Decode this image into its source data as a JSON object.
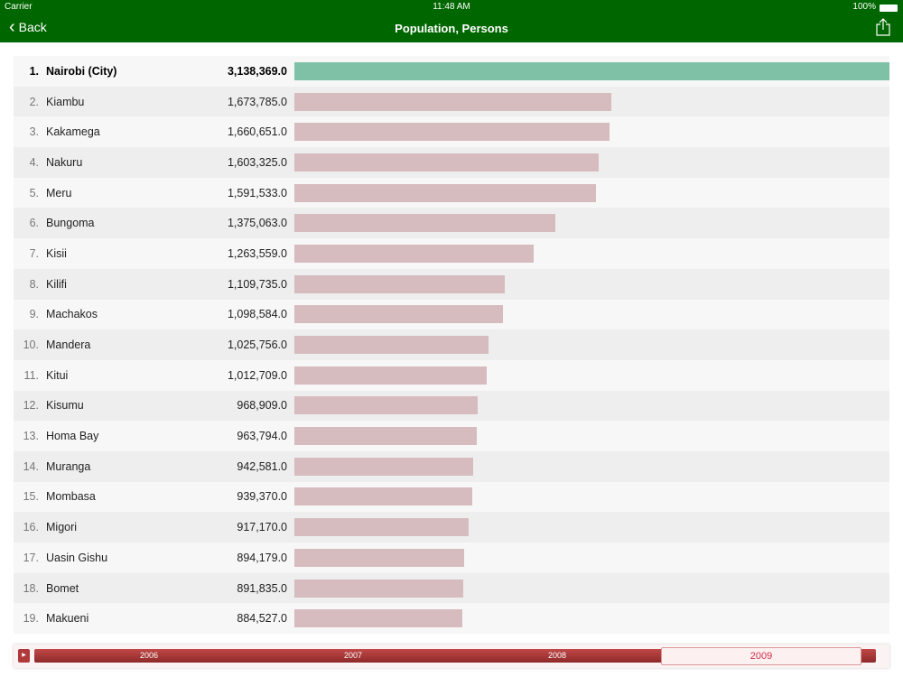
{
  "status": {
    "carrier": "Carrier",
    "time": "11:48 AM",
    "battery": "100%"
  },
  "nav": {
    "back": "Back",
    "title": "Population, Persons"
  },
  "chart_data": {
    "type": "bar",
    "title": "Population, Persons",
    "year": "2009",
    "items": [
      {
        "rank": "1.",
        "name": "Nairobi (City)",
        "value": 3138369,
        "label": "3,138,369.0"
      },
      {
        "rank": "2.",
        "name": "Kiambu",
        "value": 1673785,
        "label": "1,673,785.0"
      },
      {
        "rank": "3.",
        "name": "Kakamega",
        "value": 1660651,
        "label": "1,660,651.0"
      },
      {
        "rank": "4.",
        "name": "Nakuru",
        "value": 1603325,
        "label": "1,603,325.0"
      },
      {
        "rank": "5.",
        "name": "Meru",
        "value": 1591533,
        "label": "1,591,533.0"
      },
      {
        "rank": "6.",
        "name": "Bungoma",
        "value": 1375063,
        "label": "1,375,063.0"
      },
      {
        "rank": "7.",
        "name": "Kisii",
        "value": 1263559,
        "label": "1,263,559.0"
      },
      {
        "rank": "8.",
        "name": "Kilifi",
        "value": 1109735,
        "label": "1,109,735.0"
      },
      {
        "rank": "9.",
        "name": "Machakos",
        "value": 1098584,
        "label": "1,098,584.0"
      },
      {
        "rank": "10.",
        "name": "Mandera",
        "value": 1025756,
        "label": "1,025,756.0"
      },
      {
        "rank": "11.",
        "name": "Kitui",
        "value": 1012709,
        "label": "1,012,709.0"
      },
      {
        "rank": "12.",
        "name": "Kisumu",
        "value": 968909,
        "label": "968,909.0"
      },
      {
        "rank": "13.",
        "name": "Homa Bay",
        "value": 963794,
        "label": "963,794.0"
      },
      {
        "rank": "14.",
        "name": "Muranga",
        "value": 942581,
        "label": "942,581.0"
      },
      {
        "rank": "15.",
        "name": "Mombasa",
        "value": 939370,
        "label": "939,370.0"
      },
      {
        "rank": "16.",
        "name": "Migori",
        "value": 917170,
        "label": "917,170.0"
      },
      {
        "rank": "17.",
        "name": "Uasin Gishu",
        "value": 894179,
        "label": "894,179.0"
      },
      {
        "rank": "18.",
        "name": "Bomet",
        "value": 891835,
        "label": "891,835.0"
      },
      {
        "rank": "19.",
        "name": "Makueni",
        "value": 884527,
        "label": "884,527.0"
      }
    ],
    "colors": {
      "top": "#7fc1a6",
      "other": "#d6bcbf"
    }
  },
  "timeline": {
    "years": [
      "2006",
      "2007",
      "2008"
    ],
    "selected": "2009"
  }
}
